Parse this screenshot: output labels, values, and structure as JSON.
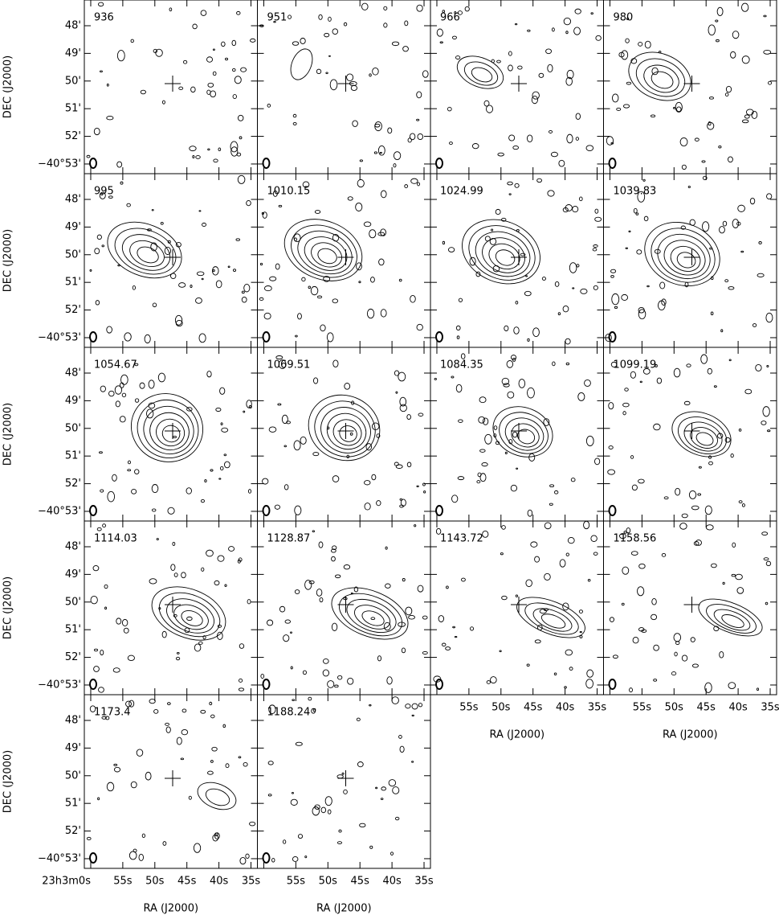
{
  "chart_data": {
    "type": "channel_map",
    "xlabel": "RA (J2000)",
    "ylabel": "DEC (J2000)",
    "panels": [
      936,
      951,
      966,
      980,
      995,
      1010.15,
      1024.99,
      1039.83,
      1054.67,
      1069.51,
      1084.35,
      1099.19,
      1114.03,
      1128.87,
      1143.72,
      1158.56,
      1173.4,
      1188.24
    ],
    "xlim": [
      181,
      154
    ],
    "xticks": [
      {
        "value": 180,
        "label": "23h3m0s"
      },
      {
        "value": 175,
        "label": "55s"
      },
      {
        "value": 170,
        "label": "50s"
      },
      {
        "value": 165,
        "label": "45s"
      },
      {
        "value": 160,
        "label": "40s"
      },
      {
        "value": 155,
        "label": "35s"
      }
    ],
    "ylim": [
      -2453.35,
      -2447.07
    ],
    "yticks": [
      {
        "value": -2448,
        "label": "48'"
      },
      {
        "value": -2449,
        "label": "49'"
      },
      {
        "value": -2450,
        "label": "50'"
      },
      {
        "value": -2451,
        "label": "51'"
      },
      {
        "value": -2452,
        "label": "52'"
      },
      {
        "value": -2453,
        "label": "−40°53'"
      }
    ]
  }
}
